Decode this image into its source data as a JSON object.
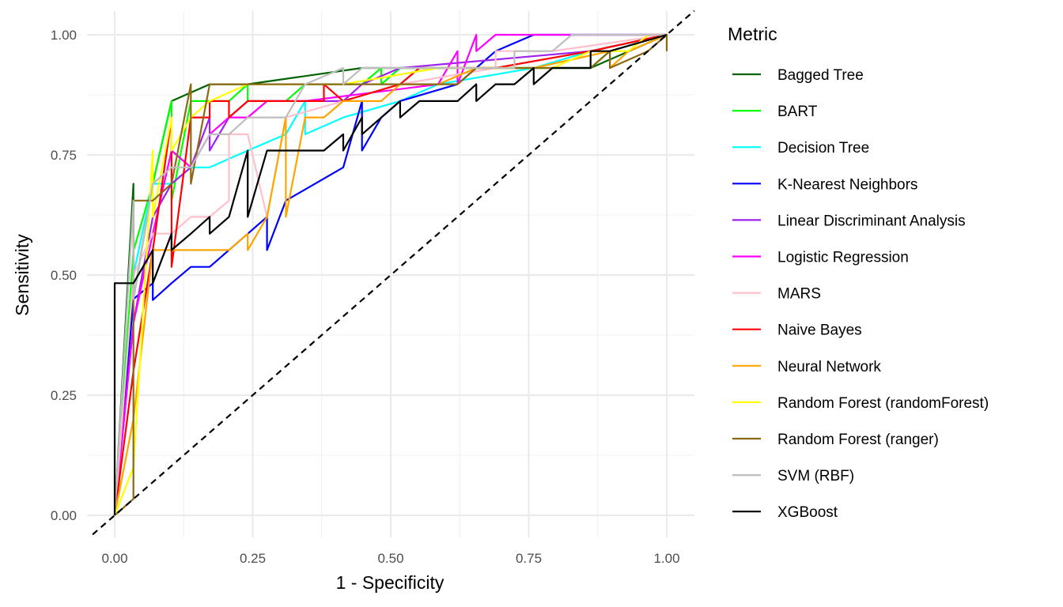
{
  "chart_data": {
    "type": "line",
    "title": "",
    "xlabel": "1 - Specificity",
    "ylabel": "Sensitivity",
    "xlim": [
      -0.04,
      1.05
    ],
    "ylim": [
      -0.045,
      1.05
    ],
    "x_ticks": [
      "0.00",
      "0.25",
      "0.50",
      "0.75",
      "1.00"
    ],
    "y_ticks": [
      "0.00",
      "0.25",
      "0.50",
      "0.75",
      "1.00"
    ],
    "tick_values": [
      0,
      0.25,
      0.5,
      0.75,
      1.0
    ],
    "grid": true,
    "legend": {
      "title": "Metric",
      "position": "right"
    },
    "reference_line": {
      "style": "dashed",
      "color": "#000000",
      "from": [
        -0.04,
        -0.04
      ],
      "to": [
        1.05,
        1.05
      ]
    },
    "series": [
      {
        "name": "Bagged Tree",
        "color": "#006400",
        "points": [
          [
            0,
            0
          ],
          [
            0.034,
            0.69
          ],
          [
            0.034,
            0.45
          ],
          [
            0.069,
            0.69
          ],
          [
            0.103,
            0.862
          ],
          [
            0.172,
            0.897
          ],
          [
            0.241,
            0.897
          ],
          [
            0.448,
            0.931
          ],
          [
            0.862,
            0.931
          ],
          [
            1,
            1
          ]
        ]
      },
      {
        "name": "BART",
        "color": "#00ff00",
        "points": [
          [
            0,
            0
          ],
          [
            0.034,
            0.55
          ],
          [
            0.069,
            0.69
          ],
          [
            0.103,
            0.862
          ],
          [
            0.103,
            0.655
          ],
          [
            0.138,
            0.862
          ],
          [
            0.207,
            0.862
          ],
          [
            0.241,
            0.897
          ],
          [
            0.241,
            0.862
          ],
          [
            0.31,
            0.862
          ],
          [
            0.345,
            0.897
          ],
          [
            0.448,
            0.897
          ],
          [
            0.483,
            0.931
          ],
          [
            0.483,
            0.897
          ],
          [
            0.517,
            0.931
          ],
          [
            0.862,
            0.931
          ],
          [
            0.897,
            0.966
          ],
          [
            1,
            1
          ]
        ]
      },
      {
        "name": "Decision Tree",
        "color": "#00ffff",
        "points": [
          [
            0,
            0
          ],
          [
            0.034,
            0.5
          ],
          [
            0.069,
            0.69
          ],
          [
            0.103,
            0.69
          ],
          [
            0.138,
            0.724
          ],
          [
            0.172,
            0.724
          ],
          [
            0.241,
            0.759
          ],
          [
            0.31,
            0.793
          ],
          [
            0.345,
            0.862
          ],
          [
            0.345,
            0.793
          ],
          [
            0.414,
            0.828
          ],
          [
            0.517,
            0.862
          ],
          [
            0.586,
            0.897
          ],
          [
            0.759,
            0.931
          ],
          [
            0.862,
            0.966
          ],
          [
            1,
            1
          ]
        ]
      },
      {
        "name": "K-Nearest Neighbors",
        "color": "#0000ff",
        "points": [
          [
            0,
            0
          ],
          [
            0.034,
            0.45
          ],
          [
            0.069,
            0.483
          ],
          [
            0.069,
            0.448
          ],
          [
            0.103,
            0.483
          ],
          [
            0.138,
            0.517
          ],
          [
            0.172,
            0.517
          ],
          [
            0.276,
            0.621
          ],
          [
            0.276,
            0.552
          ],
          [
            0.31,
            0.655
          ],
          [
            0.414,
            0.724
          ],
          [
            0.448,
            0.862
          ],
          [
            0.448,
            0.759
          ],
          [
            0.483,
            0.828
          ],
          [
            0.517,
            0.862
          ],
          [
            0.621,
            0.897
          ],
          [
            0.69,
            0.966
          ],
          [
            0.759,
            1
          ],
          [
            0.862,
            1
          ],
          [
            1,
            1
          ]
        ]
      },
      {
        "name": "Linear Discriminant Analysis",
        "color": "#a020f0",
        "points": [
          [
            0,
            0
          ],
          [
            0.034,
            0.4
          ],
          [
            0.069,
            0.621
          ],
          [
            0.103,
            0.69
          ],
          [
            0.138,
            0.724
          ],
          [
            0.172,
            0.828
          ],
          [
            0.172,
            0.759
          ],
          [
            0.207,
            0.828
          ],
          [
            0.241,
            0.862
          ],
          [
            0.414,
            0.862
          ],
          [
            0.448,
            0.897
          ],
          [
            0.517,
            0.931
          ],
          [
            0.862,
            0.966
          ],
          [
            1,
            1
          ]
        ]
      },
      {
        "name": "Logistic Regression",
        "color": "#ff00ff",
        "points": [
          [
            0,
            0
          ],
          [
            0.034,
            0.4
          ],
          [
            0.069,
            0.586
          ],
          [
            0.103,
            0.759
          ],
          [
            0.138,
            0.724
          ],
          [
            0.172,
            0.793
          ],
          [
            0.207,
            0.828
          ],
          [
            0.241,
            0.828
          ],
          [
            0.276,
            0.862
          ],
          [
            0.345,
            0.862
          ],
          [
            0.586,
            0.897
          ],
          [
            0.621,
            0.966
          ],
          [
            0.621,
            0.897
          ],
          [
            0.655,
            1
          ],
          [
            0.655,
            0.966
          ],
          [
            0.69,
            1
          ],
          [
            1,
            1
          ]
        ]
      },
      {
        "name": "MARS",
        "color": "#ffc0cb",
        "points": [
          [
            0,
            0
          ],
          [
            0.034,
            0.5
          ],
          [
            0.069,
            0.586
          ],
          [
            0.103,
            0.586
          ],
          [
            0.138,
            0.621
          ],
          [
            0.172,
            0.621
          ],
          [
            0.207,
            0.655
          ],
          [
            0.207,
            0.793
          ],
          [
            0.241,
            0.793
          ],
          [
            0.276,
            0.621
          ],
          [
            0.31,
            0.828
          ],
          [
            0.414,
            0.862
          ],
          [
            0.517,
            0.897
          ],
          [
            0.69,
            0.931
          ],
          [
            0.69,
            0.966
          ],
          [
            0.793,
            0.966
          ],
          [
            1,
            1
          ]
        ]
      },
      {
        "name": "Naive Bayes",
        "color": "#ff0000",
        "points": [
          [
            0,
            0
          ],
          [
            0.034,
            0.3
          ],
          [
            0.069,
            0.552
          ],
          [
            0.103,
            0.828
          ],
          [
            0.103,
            0.517
          ],
          [
            0.138,
            0.828
          ],
          [
            0.172,
            0.828
          ],
          [
            0.172,
            0.862
          ],
          [
            0.207,
            0.862
          ],
          [
            0.207,
            0.828
          ],
          [
            0.241,
            0.862
          ],
          [
            0.379,
            0.862
          ],
          [
            0.379,
            0.897
          ],
          [
            0.414,
            0.862
          ],
          [
            0.517,
            0.897
          ],
          [
            0.552,
            0.931
          ],
          [
            0.621,
            0.931
          ],
          [
            0.69,
            0.931
          ],
          [
            0.862,
            0.966
          ],
          [
            1,
            1
          ]
        ]
      },
      {
        "name": "Neural Network",
        "color": "#ffa500",
        "points": [
          [
            0,
            0
          ],
          [
            0.034,
            0.2
          ],
          [
            0.069,
            0.552
          ],
          [
            0.138,
            0.552
          ],
          [
            0.207,
            0.552
          ],
          [
            0.241,
            0.586
          ],
          [
            0.241,
            0.552
          ],
          [
            0.276,
            0.621
          ],
          [
            0.31,
            0.828
          ],
          [
            0.31,
            0.621
          ],
          [
            0.345,
            0.828
          ],
          [
            0.379,
            0.828
          ],
          [
            0.414,
            0.862
          ],
          [
            0.483,
            0.862
          ],
          [
            0.517,
            0.897
          ],
          [
            0.586,
            0.897
          ],
          [
            0.655,
            0.931
          ],
          [
            0.759,
            0.931
          ],
          [
            0.897,
            0.966
          ],
          [
            0.897,
            0.931
          ],
          [
            0.931,
            0.966
          ],
          [
            1,
            1
          ]
        ]
      },
      {
        "name": "Random Forest (randomForest)",
        "color": "#ffff00",
        "points": [
          [
            0,
            0
          ],
          [
            0.034,
            0.1
          ],
          [
            0.069,
            0.759
          ],
          [
            0.069,
            0.621
          ],
          [
            0.103,
            0.828
          ],
          [
            0.103,
            0.759
          ],
          [
            0.138,
            0.828
          ],
          [
            0.172,
            0.862
          ],
          [
            0.241,
            0.897
          ],
          [
            0.414,
            0.897
          ],
          [
            0.586,
            0.931
          ],
          [
            0.793,
            0.931
          ],
          [
            0.862,
            0.966
          ],
          [
            0.931,
            0.966
          ],
          [
            0.966,
            1
          ],
          [
            1,
            1
          ]
        ]
      },
      {
        "name": "Random Forest (ranger)",
        "color": "#8b6914",
        "points": [
          [
            0,
            0
          ],
          [
            0.034,
            0.034
          ],
          [
            0.034,
            0.655
          ],
          [
            0.069,
            0.655
          ],
          [
            0.103,
            0.69
          ],
          [
            0.138,
            0.897
          ],
          [
            0.138,
            0.69
          ],
          [
            0.172,
            0.897
          ],
          [
            0.621,
            0.897
          ],
          [
            0.655,
            0.931
          ],
          [
            0.862,
            0.931
          ],
          [
            0.897,
            0.966
          ],
          [
            0.897,
            0.931
          ],
          [
            0.966,
            0.966
          ],
          [
            1,
            1
          ],
          [
            1,
            0.966
          ]
        ]
      },
      {
        "name": "SVM (RBF)",
        "color": "#bebebe",
        "points": [
          [
            0,
            0
          ],
          [
            0.034,
            0.655
          ],
          [
            0.034,
            0.45
          ],
          [
            0.069,
            0.69
          ],
          [
            0.103,
            0.724
          ],
          [
            0.138,
            0.724
          ],
          [
            0.172,
            0.793
          ],
          [
            0.207,
            0.793
          ],
          [
            0.241,
            0.828
          ],
          [
            0.276,
            0.828
          ],
          [
            0.31,
            0.828
          ],
          [
            0.345,
            0.897
          ],
          [
            0.414,
            0.931
          ],
          [
            0.414,
            0.897
          ],
          [
            0.448,
            0.931
          ],
          [
            0.724,
            0.931
          ],
          [
            0.724,
            0.966
          ],
          [
            0.793,
            0.966
          ],
          [
            0.828,
            1
          ],
          [
            1,
            1
          ]
        ]
      },
      {
        "name": "XGBoost",
        "color": "#000000",
        "points": [
          [
            0,
            0
          ],
          [
            0,
            0.483
          ],
          [
            0,
            0.483
          ],
          [
            0.034,
            0.483
          ],
          [
            0.069,
            0.552
          ],
          [
            0.069,
            0.483
          ],
          [
            0.103,
            0.586
          ],
          [
            0.103,
            0.552
          ],
          [
            0.138,
            0.586
          ],
          [
            0.172,
            0.621
          ],
          [
            0.172,
            0.586
          ],
          [
            0.207,
            0.621
          ],
          [
            0.241,
            0.759
          ],
          [
            0.241,
            0.621
          ],
          [
            0.276,
            0.759
          ],
          [
            0.379,
            0.759
          ],
          [
            0.414,
            0.793
          ],
          [
            0.414,
            0.759
          ],
          [
            0.448,
            0.828
          ],
          [
            0.448,
            0.793
          ],
          [
            0.517,
            0.862
          ],
          [
            0.517,
            0.828
          ],
          [
            0.552,
            0.862
          ],
          [
            0.621,
            0.862
          ],
          [
            0.655,
            0.897
          ],
          [
            0.655,
            0.862
          ],
          [
            0.69,
            0.897
          ],
          [
            0.724,
            0.897
          ],
          [
            0.759,
            0.931
          ],
          [
            0.759,
            0.897
          ],
          [
            0.793,
            0.931
          ],
          [
            0.862,
            0.931
          ],
          [
            0.862,
            0.966
          ],
          [
            0.897,
            0.966
          ],
          [
            1,
            1
          ]
        ]
      }
    ]
  }
}
